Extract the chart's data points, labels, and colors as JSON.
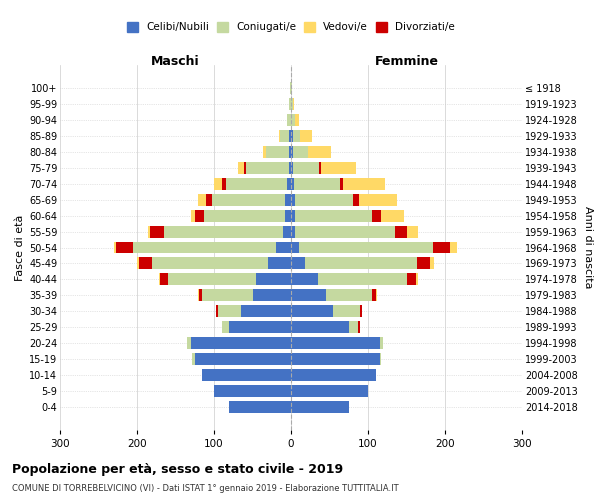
{
  "age_groups": [
    "0-4",
    "5-9",
    "10-14",
    "15-19",
    "20-24",
    "25-29",
    "30-34",
    "35-39",
    "40-44",
    "45-49",
    "50-54",
    "55-59",
    "60-64",
    "65-69",
    "70-74",
    "75-79",
    "80-84",
    "85-89",
    "90-94",
    "95-99",
    "100+"
  ],
  "birth_years": [
    "2014-2018",
    "2009-2013",
    "2004-2008",
    "1999-2003",
    "1994-1998",
    "1989-1993",
    "1984-1988",
    "1979-1983",
    "1974-1978",
    "1969-1973",
    "1964-1968",
    "1959-1963",
    "1954-1958",
    "1949-1953",
    "1944-1948",
    "1939-1943",
    "1934-1938",
    "1929-1933",
    "1924-1928",
    "1919-1923",
    "≤ 1918"
  ],
  "males": {
    "celibi": [
      80,
      100,
      115,
      125,
      130,
      80,
      65,
      50,
      45,
      30,
      20,
      10,
      8,
      8,
      5,
      3,
      2,
      2,
      0,
      0,
      0
    ],
    "coniugati": [
      0,
      0,
      0,
      3,
      5,
      10,
      30,
      65,
      115,
      150,
      185,
      155,
      105,
      95,
      80,
      55,
      30,
      12,
      5,
      2,
      1
    ],
    "vedovi": [
      0,
      0,
      0,
      0,
      0,
      0,
      0,
      1,
      2,
      2,
      3,
      3,
      5,
      10,
      10,
      8,
      5,
      2,
      0,
      0,
      0
    ],
    "divorziati": [
      0,
      0,
      0,
      0,
      0,
      0,
      2,
      5,
      10,
      18,
      22,
      18,
      12,
      8,
      5,
      3,
      0,
      0,
      0,
      0,
      0
    ]
  },
  "females": {
    "nubili": [
      75,
      100,
      110,
      115,
      115,
      75,
      55,
      45,
      35,
      18,
      10,
      5,
      5,
      5,
      4,
      2,
      2,
      2,
      0,
      0,
      0
    ],
    "coniugate": [
      0,
      0,
      0,
      2,
      5,
      12,
      35,
      60,
      115,
      145,
      175,
      130,
      100,
      75,
      60,
      35,
      20,
      10,
      5,
      2,
      1
    ],
    "vedove": [
      0,
      0,
      0,
      0,
      0,
      0,
      0,
      2,
      3,
      5,
      8,
      15,
      30,
      50,
      55,
      45,
      30,
      15,
      5,
      2,
      0
    ],
    "divorziate": [
      0,
      0,
      0,
      0,
      0,
      2,
      2,
      5,
      12,
      18,
      22,
      15,
      12,
      8,
      3,
      2,
      0,
      0,
      0,
      0,
      0
    ]
  },
  "colors": {
    "celibi_nubili": "#4472C4",
    "coniugati": "#C5D9A0",
    "vedovi": "#FFD966",
    "divorziati": "#CC0000"
  },
  "xlim": 300,
  "title": "Popolazione per età, sesso e stato civile - 2019",
  "subtitle": "COMUNE DI TORREBELVICINO (VI) - Dati ISTAT 1° gennaio 2019 - Elaborazione TUTTITALIA.IT",
  "ylabel": "Fasce di età",
  "ylabel_right": "Anni di nascita",
  "label_maschi": "Maschi",
  "label_femmine": "Femmine",
  "legend_labels": [
    "Celibi/Nubili",
    "Coniugati/e",
    "Vedovi/e",
    "Divorziati/e"
  ]
}
